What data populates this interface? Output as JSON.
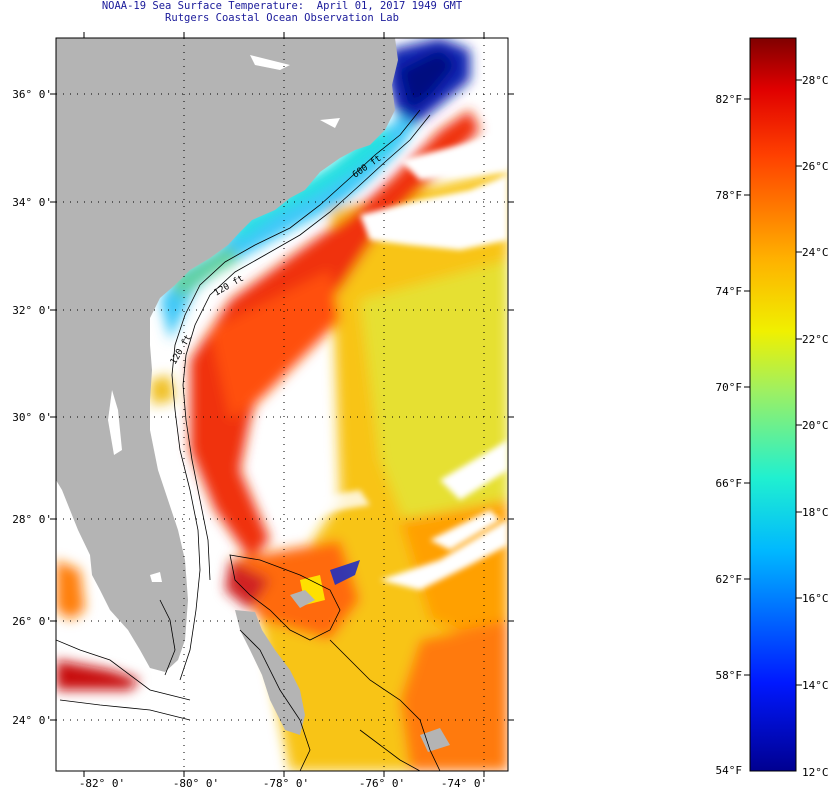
{
  "header": {
    "line1": "NOAA-19 Sea Surface Temperature:  April 01, 2017 1949 GMT",
    "line2": "Rutgers Coastal Ocean Observation Lab"
  },
  "map": {
    "lat_labels": [
      "36° 0'",
      "34° 0'",
      "32° 0'",
      "30° 0'",
      "28° 0'",
      "26° 0'",
      "24° 0'"
    ],
    "lon_labels": [
      "-82° 0'",
      "-80° 0'",
      "-78° 0'",
      "-76° 0'",
      "-74° 0'"
    ],
    "contour_labels": [
      "120 ft",
      "120 ft",
      "600 ft"
    ],
    "colors": {
      "land": "#b4b4b4",
      "cloud": "#ffffff",
      "gulf_stream": "#f03a10",
      "shelf_water": "#3cc8ff",
      "cold_water": "#0a14a0"
    }
  },
  "colorbar": {
    "min_f": "54°F",
    "min_c": "12°C",
    "f_labels": [
      "82°F",
      "78°F",
      "74°F",
      "70°F",
      "66°F",
      "62°F",
      "58°F"
    ],
    "c_labels": [
      "28°C",
      "26°C",
      "24°C",
      "22°C",
      "20°C",
      "18°C",
      "16°C",
      "14°C"
    ]
  }
}
